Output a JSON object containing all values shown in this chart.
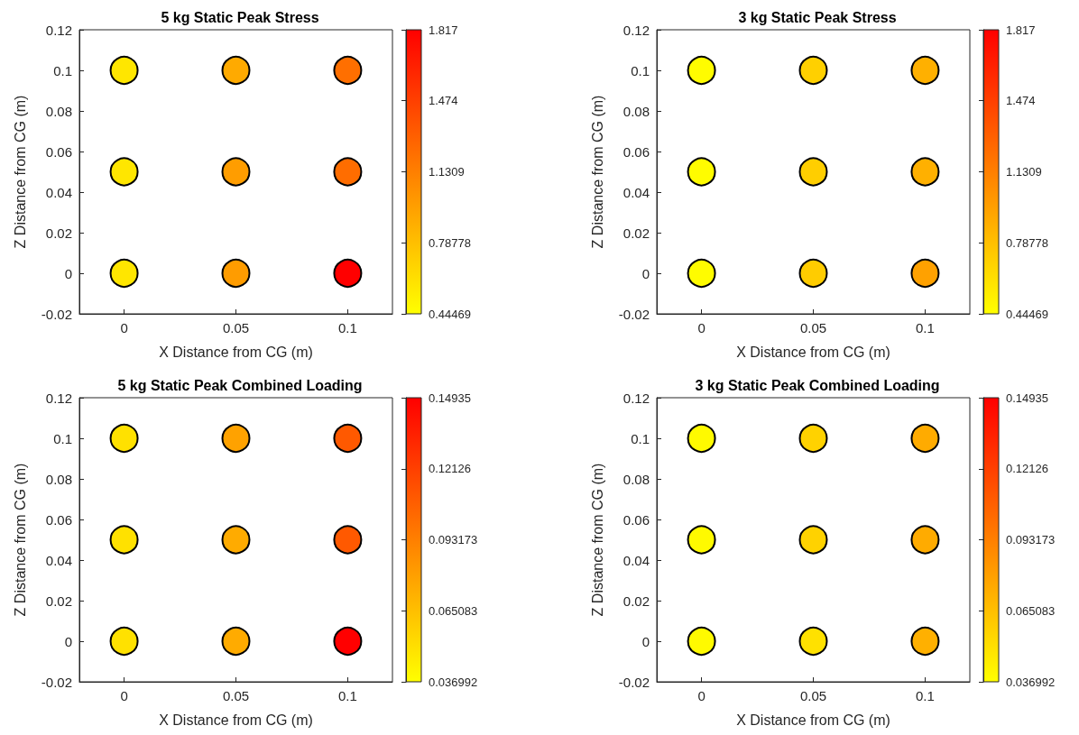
{
  "chart_data": [
    {
      "type": "scatter",
      "title": "5 kg Static Peak Stress",
      "xlabel": "X Distance from CG (m)",
      "ylabel": "Z Distance from CG (m)",
      "marker": "circle",
      "x": [
        0,
        0,
        0,
        0.05,
        0.05,
        0.05,
        0.1,
        0.1,
        0.1
      ],
      "values": [
        0,
        0.05,
        0.1,
        0,
        0.05,
        0.1,
        0,
        0.05,
        0.1
      ],
      "cvalues": [
        0.58,
        0.58,
        0.58,
        0.98,
        0.97,
        0.9,
        1.817,
        1.23,
        1.22
      ],
      "xlim": [
        -0.02,
        0.12
      ],
      "xticks": [
        0,
        0.05,
        0.1
      ],
      "ylim": [
        -0.02,
        0.12
      ],
      "yticks": [
        -0.02,
        0,
        0.02,
        0.04,
        0.06,
        0.08,
        0.1,
        0.12
      ],
      "clim": [
        0.44469,
        1.817
      ],
      "cticks": [
        0.44469,
        0.78778,
        1.1309,
        1.474,
        1.817
      ]
    },
    {
      "type": "scatter",
      "title": "3 kg Static Peak Stress",
      "xlabel": "X Distance from CG (m)",
      "ylabel": "Z Distance from CG (m)",
      "marker": "circle",
      "x": [
        0,
        0,
        0,
        0.05,
        0.05,
        0.05,
        0.1,
        0.1,
        0.1
      ],
      "values": [
        0,
        0.05,
        0.1,
        0,
        0.05,
        0.1,
        0,
        0.05,
        0.1
      ],
      "cvalues": [
        0.46,
        0.46,
        0.46,
        0.72,
        0.71,
        0.7,
        0.95,
        0.87,
        0.87
      ],
      "xlim": [
        -0.02,
        0.12
      ],
      "xticks": [
        0,
        0.05,
        0.1
      ],
      "ylim": [
        -0.02,
        0.12
      ],
      "yticks": [
        -0.02,
        0,
        0.02,
        0.04,
        0.06,
        0.08,
        0.1,
        0.12
      ],
      "clim": [
        0.44469,
        1.817
      ],
      "cticks": [
        0.44469,
        0.78778,
        1.1309,
        1.474,
        1.817
      ]
    },
    {
      "type": "scatter",
      "title": "5 kg Static Peak Combined Loading",
      "xlabel": "X Distance from CG (m)",
      "ylabel": "Z Distance from CG (m)",
      "marker": "circle",
      "x": [
        0,
        0,
        0,
        0.05,
        0.05,
        0.05,
        0.1,
        0.1,
        0.1
      ],
      "values": [
        0,
        0.05,
        0.1,
        0,
        0.05,
        0.1,
        0,
        0.05,
        0.1
      ],
      "cvalues": [
        0.05,
        0.05,
        0.05,
        0.074,
        0.074,
        0.078,
        0.14935,
        0.11,
        0.11
      ],
      "xlim": [
        -0.02,
        0.12
      ],
      "xticks": [
        0,
        0.05,
        0.1
      ],
      "ylim": [
        -0.02,
        0.12
      ],
      "yticks": [
        -0.02,
        0,
        0.02,
        0.04,
        0.06,
        0.08,
        0.1,
        0.12
      ],
      "clim": [
        0.036992,
        0.14935
      ],
      "cticks": [
        0.036992,
        0.065083,
        0.093173,
        0.12126,
        0.14935
      ]
    },
    {
      "type": "scatter",
      "title": "3 kg Static Peak Combined Loading",
      "xlabel": "X Distance from CG (m)",
      "ylabel": "Z Distance from CG (m)",
      "marker": "circle",
      "x": [
        0,
        0,
        0,
        0.05,
        0.05,
        0.05,
        0.1,
        0.1,
        0.1
      ],
      "values": [
        0,
        0.05,
        0.1,
        0,
        0.05,
        0.1,
        0,
        0.05,
        0.1
      ],
      "cvalues": [
        0.039,
        0.039,
        0.039,
        0.05,
        0.057,
        0.057,
        0.072,
        0.074,
        0.074
      ],
      "xlim": [
        -0.02,
        0.12
      ],
      "xticks": [
        0,
        0.05,
        0.1
      ],
      "ylim": [
        -0.02,
        0.12
      ],
      "yticks": [
        -0.02,
        0,
        0.02,
        0.04,
        0.06,
        0.08,
        0.1,
        0.12
      ],
      "clim": [
        0.036992,
        0.14935
      ],
      "cticks": [
        0.036992,
        0.065083,
        0.093173,
        0.12126,
        0.14935
      ]
    }
  ]
}
